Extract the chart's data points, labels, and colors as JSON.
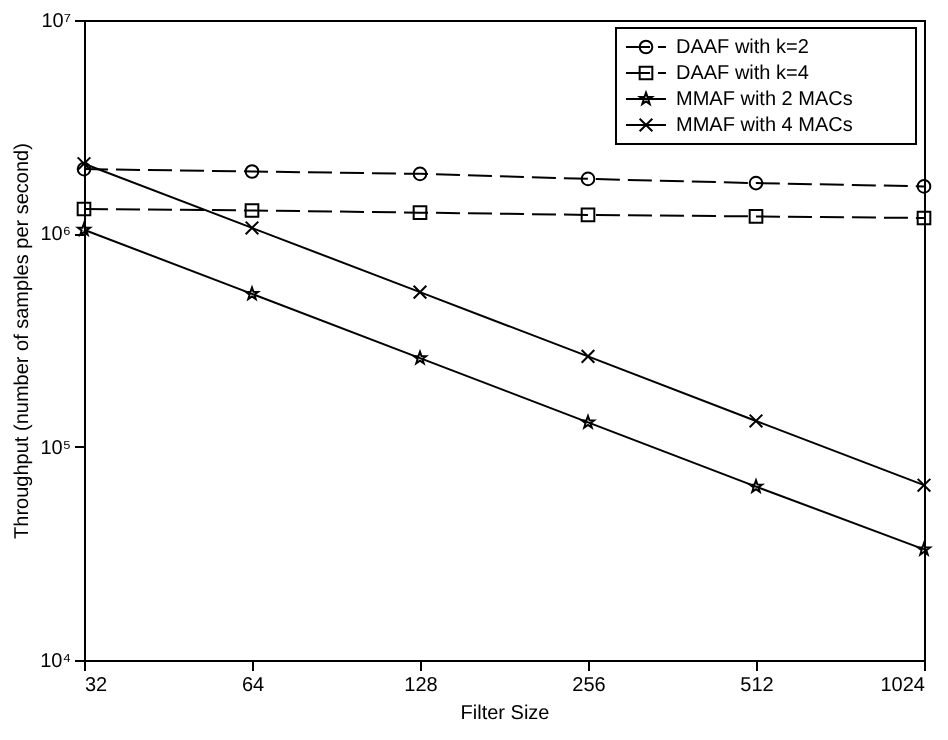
{
  "chart_data": {
    "type": "line",
    "xlabel": "Filter Size",
    "ylabel": "Throughput (number of samples per second)",
    "x": [
      32,
      64,
      128,
      256,
      512,
      1024
    ],
    "series": [
      {
        "name": "DAAF with k=2",
        "color": "#000000",
        "marker": "circle",
        "line_style": "dashed",
        "values": [
          2000000,
          1950000,
          1900000,
          1800000,
          1720000,
          1660000
        ]
      },
      {
        "name": "DAAF with k=4",
        "color": "#000000",
        "marker": "square",
        "line_style": "dashed",
        "values": [
          1300000,
          1280000,
          1250000,
          1220000,
          1200000,
          1180000
        ]
      },
      {
        "name": "MMAF with 2 MACs",
        "color": "#000000",
        "marker": "star",
        "line_style": "solid",
        "values": [
          1040000,
          520000,
          260000,
          130000,
          65000,
          33000
        ]
      },
      {
        "name": "MMAF with 4 MACs",
        "color": "#000000",
        "marker": "cross",
        "line_style": "solid",
        "values": [
          2120000,
          1060000,
          530000,
          265000,
          132000,
          66000
        ]
      }
    ],
    "log": "xy",
    "xlim": [
      32,
      1024
    ],
    "xticks": [
      32,
      64,
      128,
      256,
      512,
      1024
    ],
    "ylim": [
      10000,
      10000000
    ],
    "yticks": [
      {
        "value": 10000,
        "label": "10⁴"
      },
      {
        "value": 100000,
        "label": "10⁵"
      },
      {
        "value": 1000000,
        "label": "10⁶"
      },
      {
        "value": 10000000,
        "label": "10⁷"
      }
    ],
    "grid": false,
    "legend": "top right"
  }
}
